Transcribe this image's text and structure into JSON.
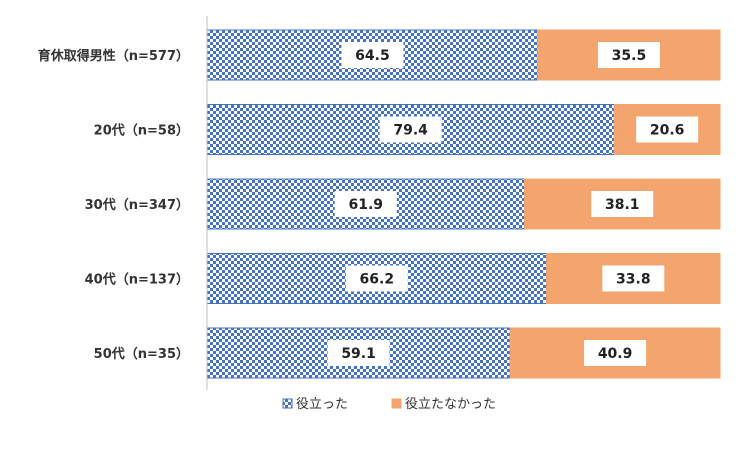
{
  "chart_data": {
    "type": "bar",
    "orientation": "horizontal",
    "stacked": true,
    "percent": true,
    "categories": [
      "育休取得男性（n=577）",
      "20代（n=58）",
      "30代（n=347）",
      "40代（n=137）",
      "50代（n=35）"
    ],
    "series": [
      {
        "name": "役立った",
        "values": [
          64.5,
          79.4,
          61.9,
          66.2,
          59.1
        ],
        "color": "#4472c4",
        "pattern": "checkerboard"
      },
      {
        "name": "役立たなかった",
        "values": [
          35.5,
          20.6,
          38.1,
          33.8,
          40.9
        ],
        "color": "#f4a56e",
        "pattern": "solid"
      }
    ],
    "xlim": [
      0,
      100
    ],
    "grid": false,
    "legend_position": "bottom",
    "data_labels": true
  }
}
